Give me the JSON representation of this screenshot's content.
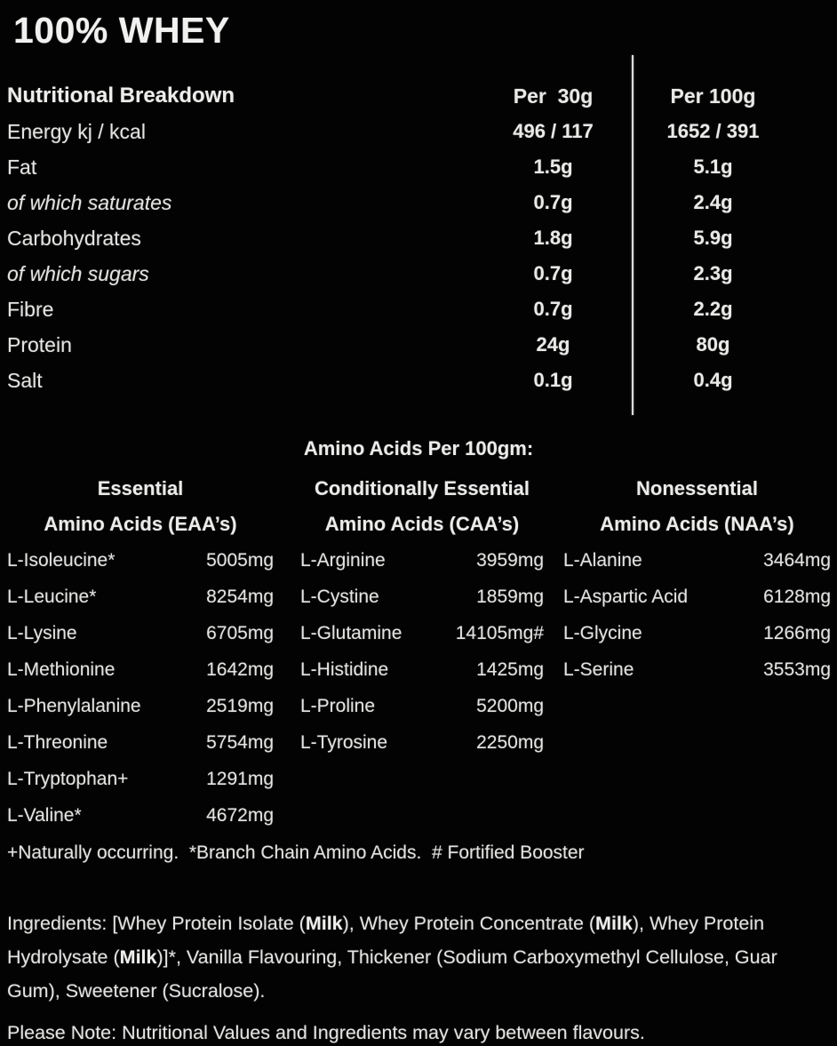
{
  "title": "100% WHEY",
  "nutrition": {
    "header": {
      "label": "Nutritional Breakdown",
      "col30": "Per  30g",
      "col100": "Per 100g"
    },
    "rows": [
      {
        "label": "Energy kj / kcal",
        "per30": "496 / 117",
        "per100": "1652 / 391"
      },
      {
        "label": "Fat",
        "per30": "1.5g",
        "per100": "5.1g"
      },
      {
        "label": "of which saturates",
        "per30": "0.7g",
        "per100": "2.4g"
      },
      {
        "label": "Carbohydrates",
        "per30": "1.8g",
        "per100": "5.9g"
      },
      {
        "label": "of which sugars",
        "per30": "0.7g",
        "per100": "2.3g"
      },
      {
        "label": "Fibre",
        "per30": "0.7g",
        "per100": "2.2g"
      },
      {
        "label": "Protein",
        "per30": "24g",
        "per100": "80g"
      },
      {
        "label": "Salt",
        "per30": "0.1g",
        "per100": "0.4g"
      }
    ]
  },
  "amino": {
    "section_title": "Amino Acids Per 100gm:",
    "groups": [
      {
        "line1": "Essential",
        "line2": "Amino Acids (EAA’s)"
      },
      {
        "line1": "Conditionally Essential",
        "line2": "Amino Acids (CAA’s)"
      },
      {
        "line1": "Nonessential",
        "line2": "Amino Acids (NAA’s)"
      }
    ],
    "rows": [
      {
        "n1": "L-Isoleucine*",
        "v1": "5005mg",
        "n2": "L-Arginine",
        "v2": "3959mg",
        "n3": "L-Alanine",
        "v3": "3464mg"
      },
      {
        "n1": "L-Leucine*",
        "v1": "8254mg",
        "n2": "L-Cystine",
        "v2": "1859mg",
        "n3": "L-Aspartic Acid",
        "v3": "6128mg"
      },
      {
        "n1": "L-Lysine",
        "v1": "6705mg",
        "n2": "L-Glutamine",
        "v2": "14105mg#",
        "n3": "L-Glycine",
        "v3": "1266mg"
      },
      {
        "n1": "L-Methionine",
        "v1": "1642mg",
        "n2": "L-Histidine",
        "v2": "1425mg",
        "n3": "L-Serine",
        "v3": "3553mg"
      },
      {
        "n1": "L-Phenylalanine",
        "v1": "2519mg",
        "n2": "L-Proline",
        "v2": "5200mg",
        "n3": "",
        "v3": ""
      },
      {
        "n1": "L-Threonine",
        "v1": "5754mg",
        "n2": "L-Tyrosine",
        "v2": "2250mg",
        "n3": "",
        "v3": ""
      },
      {
        "n1": "L-Tryptophan+",
        "v1": "1291mg",
        "n2": "",
        "v2": "",
        "n3": "",
        "v3": ""
      },
      {
        "n1": "L-Valine*",
        "v1": "4672mg",
        "n2": "",
        "v2": "",
        "n3": "",
        "v3": ""
      }
    ],
    "footnote": "+Naturally occurring.  *Branch Chain Amino Acids.  # Fortified Booster"
  },
  "ingredients": {
    "segments": [
      {
        "text": "Ingredients: [Whey Protein Isolate (",
        "bold": false
      },
      {
        "text": "Milk",
        "bold": true
      },
      {
        "text": "), Whey Protein Concentrate (",
        "bold": false
      },
      {
        "text": "Milk",
        "bold": true
      },
      {
        "text": "), Whey Protein Hydrolysate (",
        "bold": false
      },
      {
        "text": "Milk",
        "bold": true
      },
      {
        "text": ")]*, Vanilla Flavouring, Thickener (Sodium Carboxymethyl Cellulose, Guar Gum), Sweetener (Sucralose).",
        "bold": false
      }
    ]
  },
  "note": "Please Note: Nutritional Values and Ingredients may vary between flavours.",
  "colors": {
    "background": "#030303",
    "text": "#e6e6e4",
    "divider": "#dcdcda"
  }
}
